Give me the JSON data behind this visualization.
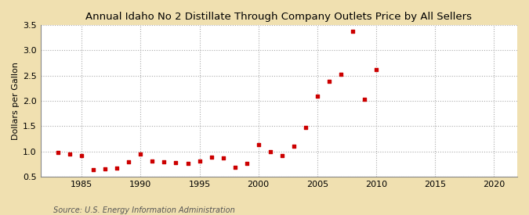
{
  "title": "Annual Idaho No 2 Distillate Through Company Outlets Price by All Sellers",
  "ylabel": "Dollars per Gallon",
  "source": "Source: U.S. Energy Information Administration",
  "figure_bg": "#f0e0b0",
  "plot_bg": "#ffffff",
  "marker_color": "#cc0000",
  "xlim": [
    1981.5,
    2022
  ],
  "ylim": [
    0.5,
    3.5
  ],
  "xticks": [
    1985,
    1990,
    1995,
    2000,
    2005,
    2010,
    2015,
    2020
  ],
  "yticks": [
    0.5,
    1.0,
    1.5,
    2.0,
    2.5,
    3.0,
    3.5
  ],
  "data": [
    [
      1983,
      0.98
    ],
    [
      1984,
      0.95
    ],
    [
      1985,
      0.92
    ],
    [
      1986,
      0.64
    ],
    [
      1987,
      0.65
    ],
    [
      1988,
      0.67
    ],
    [
      1989,
      0.79
    ],
    [
      1990,
      0.95
    ],
    [
      1991,
      0.8
    ],
    [
      1992,
      0.79
    ],
    [
      1993,
      0.77
    ],
    [
      1994,
      0.76
    ],
    [
      1995,
      0.8
    ],
    [
      1996,
      0.88
    ],
    [
      1997,
      0.87
    ],
    [
      1998,
      0.68
    ],
    [
      1999,
      0.76
    ],
    [
      2000,
      1.13
    ],
    [
      2001,
      1.0
    ],
    [
      2002,
      0.91
    ],
    [
      2003,
      1.1
    ],
    [
      2004,
      1.47
    ],
    [
      2005,
      2.09
    ],
    [
      2006,
      2.38
    ],
    [
      2007,
      2.52
    ],
    [
      2008,
      3.37
    ],
    [
      2009,
      2.03
    ],
    [
      2010,
      2.61
    ]
  ]
}
